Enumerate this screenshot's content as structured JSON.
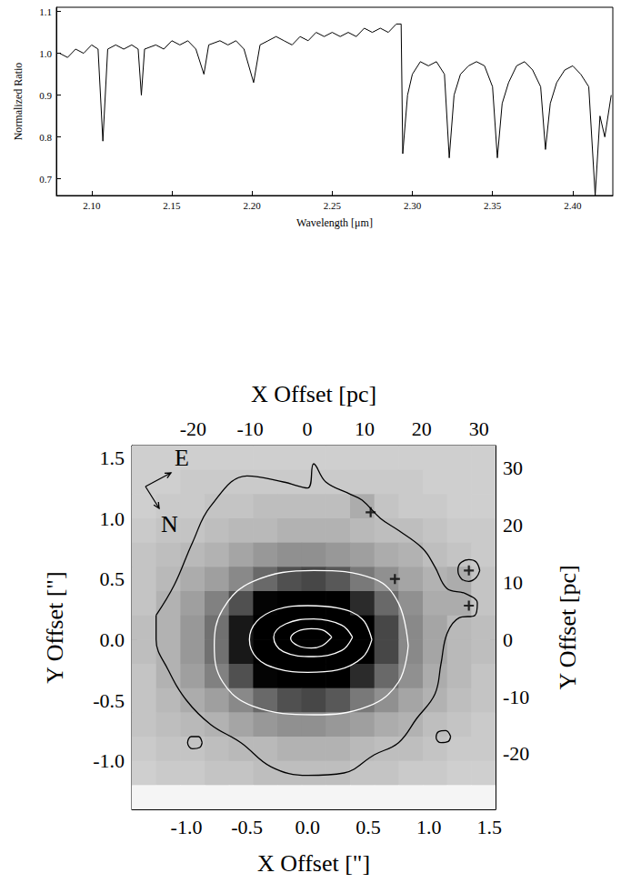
{
  "chart_data": [
    {
      "type": "line",
      "x_label": "Wavelength [μm]",
      "y_label": "Normalized Ratio",
      "color": "black",
      "grid": false,
      "xlim": [
        2.078,
        2.425
      ],
      "xticks": [
        {
          "value": 2.1,
          "label": "2.10"
        },
        2.15,
        {
          "value": 2.2,
          "label": "2.20"
        },
        2.25,
        {
          "value": 2.3,
          "label": "2.30"
        },
        2.35,
        {
          "value": 2.4,
          "label": "2.40"
        }
      ],
      "ylim": [
        0.66,
        1.11
      ],
      "yticks": [
        0.7,
        0.8,
        0.9,
        {
          "value": 1,
          "label": "1.0"
        },
        1.1
      ],
      "x": [
        2.08,
        2.085,
        2.09,
        2.095,
        2.1,
        2.104,
        2.107,
        2.11,
        2.115,
        2.12,
        2.125,
        2.129,
        2.131,
        2.133,
        2.14,
        2.145,
        2.15,
        2.155,
        2.16,
        2.165,
        2.17,
        2.173,
        2.18,
        2.185,
        2.19,
        2.195,
        2.201,
        2.205,
        2.21,
        2.215,
        2.22,
        2.225,
        2.23,
        2.235,
        2.24,
        2.245,
        2.25,
        2.255,
        2.26,
        2.265,
        2.27,
        2.275,
        2.28,
        2.285,
        2.29,
        2.293,
        2.294,
        2.297,
        2.3,
        2.305,
        2.31,
        2.315,
        2.32,
        2.323,
        2.326,
        2.33,
        2.335,
        2.34,
        2.345,
        2.35,
        2.353,
        2.356,
        2.36,
        2.365,
        2.37,
        2.375,
        2.38,
        2.383,
        2.386,
        2.39,
        2.395,
        2.4,
        2.405,
        2.41,
        2.414,
        2.417,
        2.42,
        2.424
      ],
      "values": [
        1.0,
        0.99,
        1.01,
        1.0,
        1.02,
        1.01,
        0.79,
        1.01,
        1.02,
        1.01,
        1.02,
        1.01,
        0.9,
        1.01,
        1.02,
        1.01,
        1.03,
        1.02,
        1.03,
        1.01,
        0.95,
        1.02,
        1.03,
        1.02,
        1.03,
        1.01,
        0.93,
        1.02,
        1.03,
        1.04,
        1.03,
        1.02,
        1.04,
        1.03,
        1.05,
        1.04,
        1.05,
        1.04,
        1.05,
        1.04,
        1.06,
        1.05,
        1.06,
        1.05,
        1.07,
        1.07,
        0.76,
        0.9,
        0.95,
        0.98,
        0.97,
        0.98,
        0.95,
        0.75,
        0.9,
        0.95,
        0.97,
        0.98,
        0.97,
        0.92,
        0.75,
        0.88,
        0.93,
        0.97,
        0.98,
        0.96,
        0.92,
        0.77,
        0.88,
        0.93,
        0.96,
        0.97,
        0.95,
        0.92,
        0.66,
        0.85,
        0.8,
        0.9
      ]
    },
    {
      "type": "image",
      "x_label": "X Offset [\"]",
      "y_label": "Y Offset [\"]",
      "x2_label": "X Offset [pc]",
      "y2_label": "Y Offset [pc]",
      "grid": false,
      "xlim": [
        -1.45,
        1.55
      ],
      "xticks": [
        {
          "value": -1,
          "label": "-1.0"
        },
        -0.5,
        {
          "value": 0,
          "label": "0.0"
        },
        0.5,
        {
          "value": 1,
          "label": "1.0"
        },
        1.5
      ],
      "ylim": [
        -1.4,
        1.6
      ],
      "yticks": [
        {
          "value": -1,
          "label": "-1.0"
        },
        -0.5,
        {
          "value": 0,
          "label": "0.0"
        },
        0.5,
        {
          "value": 1,
          "label": "1.0"
        },
        1.5
      ],
      "x2lim": [
        -30.7,
        32.9
      ],
      "x2ticks": [
        -20,
        -10,
        0,
        10,
        20,
        30
      ],
      "y2lim": [
        -29.7,
        33.9
      ],
      "y2ticks": [
        -20,
        -10,
        0,
        10,
        20,
        30
      ],
      "cells": {
        "x": [
          -1.35,
          -1.15,
          -0.95,
          -0.75,
          -0.55,
          -0.35,
          -0.15,
          0.05,
          0.25,
          0.45,
          0.65,
          0.85,
          1.05,
          1.25,
          1.45
        ],
        "y": [
          1.5,
          1.3,
          1.1,
          0.9,
          0.7,
          0.5,
          0.3,
          0.1,
          -0.1,
          -0.3,
          -0.5,
          -0.7,
          -0.9,
          -1.1,
          -1.3
        ],
        "z": [
          [
            16,
            16,
            16,
            16,
            16,
            16,
            16,
            16,
            16,
            16,
            16,
            16,
            16,
            16,
            16
          ],
          [
            16,
            16,
            17,
            17,
            17,
            17,
            17,
            17,
            17,
            17,
            17,
            17,
            16,
            16,
            16
          ],
          [
            16,
            17,
            17,
            18,
            18,
            19,
            19,
            19,
            19,
            22,
            18,
            17,
            17,
            16,
            16
          ],
          [
            17,
            18,
            18,
            19,
            20,
            20,
            21,
            21,
            21,
            20,
            19,
            19,
            18,
            17,
            17
          ],
          [
            18,
            19,
            20,
            21,
            23,
            25,
            26,
            26,
            25,
            24,
            22,
            21,
            19,
            18,
            17
          ],
          [
            18,
            20,
            22,
            24,
            27,
            31,
            34,
            35,
            33,
            29,
            26,
            23,
            21,
            22,
            18
          ],
          [
            18,
            21,
            24,
            28,
            34,
            42,
            49,
            51,
            46,
            38,
            31,
            26,
            22,
            22,
            18
          ],
          [
            19,
            21,
            25,
            30,
            40,
            52,
            70,
            77,
            62,
            45,
            35,
            27,
            23,
            20,
            19
          ],
          [
            19,
            21,
            25,
            30,
            40,
            52,
            70,
            77,
            62,
            45,
            35,
            27,
            23,
            20,
            19
          ],
          [
            18,
            21,
            24,
            28,
            34,
            42,
            49,
            51,
            46,
            38,
            31,
            26,
            22,
            20,
            18
          ],
          [
            18,
            20,
            22,
            24,
            27,
            31,
            34,
            35,
            33,
            29,
            26,
            23,
            21,
            19,
            18
          ],
          [
            18,
            19,
            20,
            21,
            23,
            25,
            26,
            26,
            25,
            24,
            22,
            21,
            19,
            18,
            17
          ],
          [
            17,
            18,
            18,
            19,
            20,
            20,
            21,
            21,
            21,
            20,
            19,
            19,
            18,
            17,
            17
          ],
          [
            16,
            17,
            17,
            18,
            18,
            19,
            19,
            19,
            19,
            18,
            18,
            17,
            17,
            16,
            16
          ],
          [
            4,
            4,
            4,
            4,
            4,
            4,
            4,
            4,
            4,
            4,
            4,
            4,
            4,
            4,
            4
          ]
        ]
      },
      "contours": [
        {
          "color": "black",
          "x": [
            -1.25,
            -1.1,
            -0.95,
            -0.8,
            -0.5,
            -0.2,
            0.0,
            0.05,
            0.15,
            0.35,
            0.45,
            0.6,
            0.75,
            0.95,
            1.05,
            1.15,
            1.3,
            1.4,
            1.38,
            1.25,
            1.15,
            1.1,
            1.05,
            0.9,
            0.75,
            0.55,
            0.3,
            0.0,
            -0.3,
            -0.55,
            -0.8,
            -1.0,
            -1.15,
            -1.25,
            -1.25
          ],
          "y": [
            0.2,
            0.45,
            0.8,
            1.1,
            1.35,
            1.3,
            1.25,
            1.45,
            1.3,
            1.2,
            1.15,
            1.0,
            0.9,
            0.75,
            0.6,
            0.42,
            0.38,
            0.3,
            0.2,
            0.18,
            0.05,
            -0.2,
            -0.45,
            -0.65,
            -0.85,
            -0.95,
            -1.1,
            -1.12,
            -1.05,
            -0.85,
            -0.7,
            -0.5,
            -0.25,
            0.0,
            0.2
          ]
        },
        {
          "color": "black",
          "x": [
            1.42,
            1.39,
            1.33,
            1.26,
            1.24,
            1.27,
            1.33,
            1.39,
            1.42
          ],
          "y": [
            0.57,
            0.64,
            0.66,
            0.63,
            0.57,
            0.5,
            0.48,
            0.51,
            0.57
          ]
        },
        {
          "color": "black",
          "x": [
            -0.87,
            -0.9,
            -0.96,
            -0.99,
            -0.95,
            -0.89,
            -0.87
          ],
          "y": [
            -0.85,
            -0.8,
            -0.8,
            -0.85,
            -0.9,
            -0.89,
            -0.85
          ]
        },
        {
          "color": "black",
          "x": [
            1.18,
            1.14,
            1.08,
            1.06,
            1.1,
            1.16,
            1.18
          ],
          "y": [
            -0.8,
            -0.75,
            -0.76,
            -0.81,
            -0.85,
            -0.84,
            -0.8
          ]
        },
        {
          "color": "white",
          "x": [
            0.83,
            0.75,
            0.55,
            0.05,
            -0.45,
            -0.7,
            -0.77,
            -0.7,
            -0.45,
            0.05,
            0.5,
            0.75,
            0.83
          ],
          "y": [
            -0.05,
            0.3,
            0.5,
            0.57,
            0.48,
            0.25,
            -0.05,
            -0.35,
            -0.55,
            -0.62,
            -0.55,
            -0.35,
            -0.05
          ]
        },
        {
          "color": "white",
          "x": [
            0.53,
            0.45,
            0.25,
            0.0,
            -0.25,
            -0.42,
            -0.48,
            -0.42,
            -0.25,
            0.0,
            0.25,
            0.45,
            0.53
          ],
          "y": [
            0.0,
            0.17,
            0.26,
            0.28,
            0.25,
            0.15,
            0.0,
            -0.15,
            -0.24,
            -0.27,
            -0.25,
            -0.15,
            0.0
          ]
        },
        {
          "color": "white",
          "x": [
            0.37,
            0.28,
            0.05,
            -0.18,
            -0.28,
            -0.2,
            0.05,
            0.28,
            0.37
          ],
          "y": [
            0.02,
            0.12,
            0.17,
            0.13,
            0.02,
            -0.1,
            -0.14,
            -0.09,
            0.02
          ]
        },
        {
          "color": "white",
          "x": [
            0.2,
            0.12,
            0.03,
            -0.08,
            -0.14,
            -0.08,
            0.03,
            0.12,
            0.2
          ],
          "y": [
            0.02,
            0.08,
            0.09,
            0.07,
            0.01,
            -0.05,
            -0.07,
            -0.05,
            0.02
          ]
        }
      ],
      "series": [
        {
          "type": "scatter",
          "marker": "cross",
          "color": "black",
          "x": [
            0.52,
            0.72,
            1.33,
            1.33
          ],
          "y": [
            1.05,
            0.5,
            0.57,
            0.28
          ]
        }
      ],
      "annotations": [
        {
          "text": "E"
        },
        {
          "text": "N"
        }
      ]
    }
  ]
}
